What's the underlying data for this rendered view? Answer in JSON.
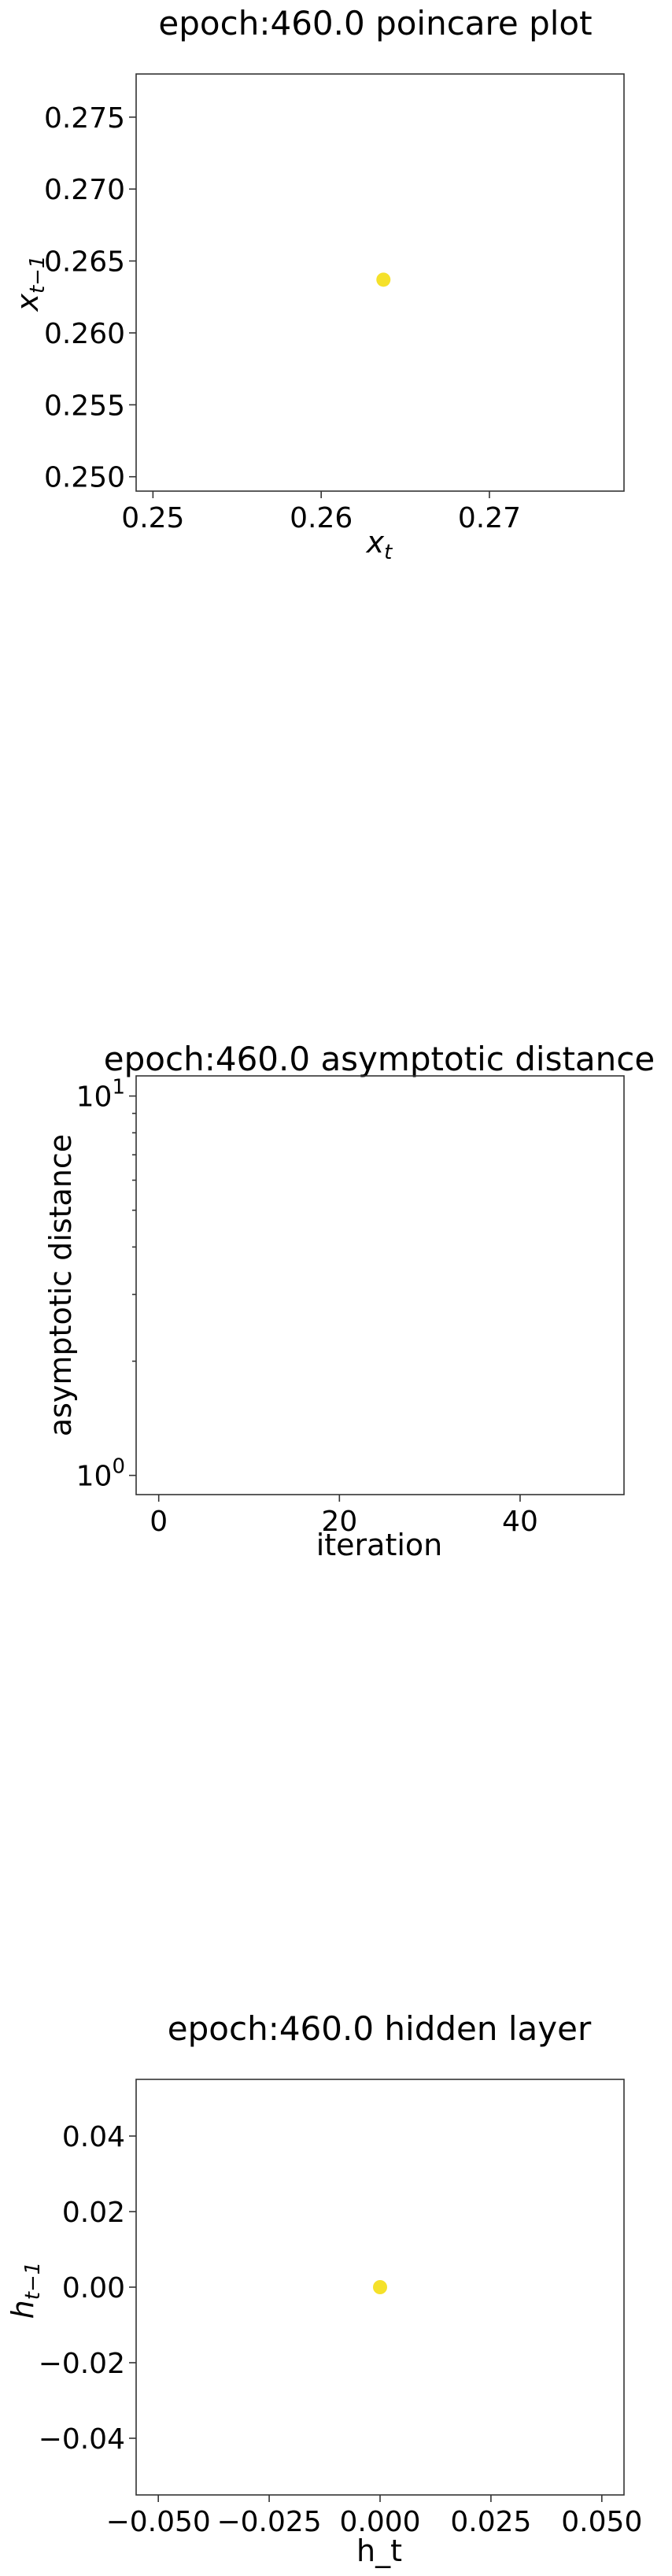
{
  "chart_data": [
    {
      "type": "scatter",
      "title": "epoch:460.0 poincare plot",
      "xlabel_main": "x",
      "xlabel_sub": "t",
      "ylabel_main": "x",
      "ylabel_sub": "t−1",
      "xlim": [
        0.249,
        0.278
      ],
      "ylim": [
        0.249,
        0.278
      ],
      "xticks": [
        0.25,
        0.26,
        0.27
      ],
      "xtick_labels": [
        "0.25",
        "0.26",
        "0.27"
      ],
      "yticks": [
        0.25,
        0.255,
        0.26,
        0.265,
        0.27,
        0.275
      ],
      "ytick_labels": [
        "0.250",
        "0.255",
        "0.260",
        "0.265",
        "0.270",
        "0.275"
      ],
      "points": [
        {
          "x": 0.2637,
          "y": 0.2637
        }
      ],
      "point_color": "#f5e12a"
    },
    {
      "type": "line",
      "title": "epoch:460.0 asymptotic distance",
      "xlabel": "iteration",
      "ylabel": "asymptotic distance",
      "yscale": "log",
      "xlim": [
        -2.5,
        51.5
      ],
      "ylim": [
        0.89,
        11.3
      ],
      "xticks": [
        0,
        20,
        40
      ],
      "xtick_labels": [
        "0",
        "20",
        "40"
      ],
      "yticks": [
        1,
        10
      ],
      "ytick_labels": [
        {
          "base": "10",
          "exp": "0"
        },
        {
          "base": "10",
          "exp": "1"
        }
      ],
      "series": []
    },
    {
      "type": "scatter",
      "title": "epoch:460.0 hidden layer",
      "xlabel": "h_t",
      "ylabel_main": "h",
      "ylabel_sub": "t−1",
      "xlim": [
        -0.055,
        0.055
      ],
      "ylim": [
        -0.055,
        0.055
      ],
      "xticks": [
        -0.05,
        -0.025,
        0,
        0.025,
        0.05
      ],
      "xtick_labels": [
        "−0.050",
        "−0.025",
        "0.000",
        "0.025",
        "0.050"
      ],
      "yticks": [
        -0.04,
        -0.02,
        0,
        0.02,
        0.04
      ],
      "ytick_labels": [
        "−0.04",
        "−0.02",
        "0.00",
        "0.02",
        "0.04"
      ],
      "points": [
        {
          "x": 0.0,
          "y": 0.0
        }
      ],
      "point_color": "#f5e12a"
    }
  ]
}
